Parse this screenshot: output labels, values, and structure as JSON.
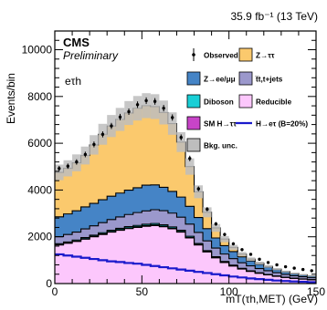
{
  "chart_data": {
    "type": "bar",
    "lumi_label": "35.9 fb⁻¹ (13 TeV)",
    "experiment": "CMS",
    "status": "Preliminary",
    "channel": "eτh",
    "xlabel": "mT(τh,MET) (GeV)",
    "ylabel": "Events/bin",
    "xlim": [
      0,
      150
    ],
    "ylim": [
      0,
      10800
    ],
    "xticks": [
      "0",
      "50",
      "100",
      "150"
    ],
    "yticks": [
      "0",
      "2000",
      "4000",
      "6000",
      "8000",
      "10000"
    ],
    "bin_width": 5,
    "x_bin_centers": [
      2.5,
      7.5,
      12.5,
      17.5,
      22.5,
      27.5,
      32.5,
      37.5,
      42.5,
      47.5,
      52.5,
      57.5,
      62.5,
      67.5,
      72.5,
      77.5,
      82.5,
      87.5,
      92.5,
      97.5,
      102.5,
      107.5,
      112.5,
      117.5,
      122.5,
      127.5,
      132.5,
      137.5,
      142.5,
      147.5
    ],
    "legend_position": "top-right",
    "series": [
      {
        "name": "Reducible",
        "color": "#fcc7fc",
        "values": [
          1650,
          1720,
          1800,
          1900,
          2000,
          2100,
          2200,
          2280,
          2350,
          2400,
          2450,
          2480,
          2430,
          2340,
          2200,
          1950,
          1650,
          1350,
          1100,
          900,
          750,
          620,
          520,
          440,
          370,
          310,
          260,
          220,
          190,
          160
        ]
      },
      {
        "name": "SM H→ττ",
        "color": "#c844c8",
        "values": [
          15,
          16,
          18,
          20,
          22,
          24,
          25,
          26,
          27,
          28,
          28,
          28,
          27,
          26,
          25,
          23,
          20,
          17,
          14,
          12,
          10,
          8,
          7,
          6,
          5,
          4,
          3,
          3,
          2,
          2
        ]
      },
      {
        "name": "Diboson",
        "color": "#19cfd6",
        "values": [
          40,
          42,
          44,
          46,
          48,
          50,
          52,
          54,
          56,
          58,
          60,
          60,
          58,
          56,
          54,
          50,
          45,
          40,
          35,
          30,
          26,
          22,
          19,
          16,
          14,
          12,
          10,
          9,
          8,
          7
        ]
      },
      {
        "name": "t̅t,t+jets",
        "color": "#9b98cc",
        "values": [
          300,
          320,
          340,
          370,
          400,
          430,
          460,
          490,
          520,
          550,
          570,
          590,
          600,
          590,
          560,
          520,
          470,
          420,
          370,
          320,
          280,
          240,
          210,
          180,
          160,
          140,
          120,
          100,
          90,
          80
        ]
      },
      {
        "name": "Z→ee/μμ",
        "color": "#4584c6",
        "values": [
          850,
          880,
          910,
          940,
          960,
          980,
          1000,
          1020,
          1040,
          1060,
          1100,
          1060,
          1000,
          930,
          860,
          760,
          640,
          520,
          430,
          360,
          300,
          250,
          210,
          180,
          150,
          125,
          105,
          90,
          75,
          65
        ]
      },
      {
        "name": "Z→ττ",
        "color": "#fbc96d",
        "values": [
          1900,
          1950,
          2050,
          2200,
          2500,
          2800,
          3000,
          3150,
          3300,
          3400,
          3400,
          3350,
          3200,
          2900,
          2350,
          1700,
          1100,
          700,
          430,
          280,
          180,
          120,
          80,
          55,
          35,
          25,
          18,
          12,
          8,
          6
        ]
      }
    ],
    "signal": {
      "name": "H→eτ (B=20%)",
      "color": "#1a1acc",
      "values": [
        1250,
        1200,
        1150,
        1100,
        1050,
        1000,
        950,
        920,
        880,
        850,
        800,
        750,
        700,
        650,
        600,
        550,
        500,
        450,
        400,
        350,
        300,
        260,
        220,
        190,
        160,
        130,
        110,
        90,
        75,
        60
      ]
    },
    "observed": {
      "name": "Observed",
      "values": [
        4920,
        5020,
        5200,
        5520,
        5950,
        6380,
        6740,
        7120,
        7350,
        7650,
        7820,
        7790,
        7500,
        7100,
        6250,
        5350,
        4050,
        3180,
        2550,
        2100,
        1700,
        1450,
        1250,
        1040,
        900,
        800,
        720,
        660,
        600,
        550
      ]
    },
    "uncertainty": {
      "name": "Bkg. unc.",
      "color": "#bdbdbd",
      "relative": 0.07
    },
    "legend_rows": [
      [
        "Observed",
        "Z→ττ"
      ],
      [
        "Z→ee/μμ",
        "t̅t,t+jets"
      ],
      [
        "Diboson",
        "Reducible"
      ],
      [
        "SM H→ττ",
        "H→eτ (B=20%)"
      ],
      [
        "Bkg. unc.",
        ""
      ]
    ]
  }
}
